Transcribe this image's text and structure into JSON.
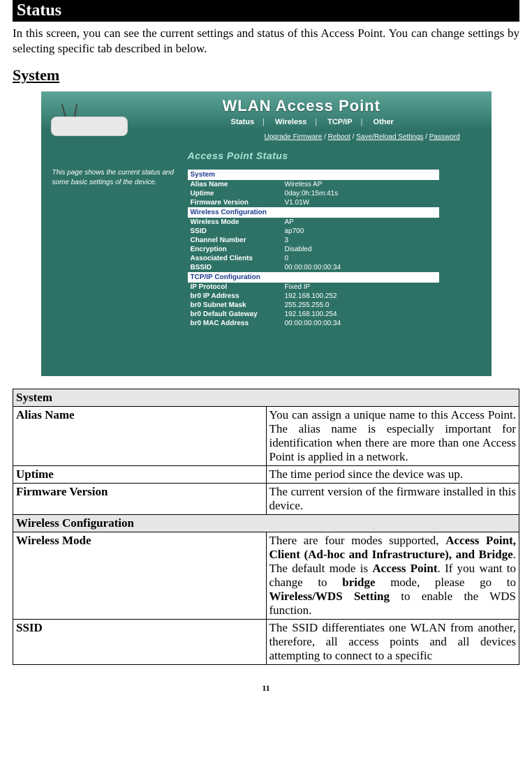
{
  "page": {
    "status_header": "Status",
    "intro": "In this screen, you can see the current settings and status of this Access Point. You can change settings by selecting specific tab described in below.",
    "section_title": "System",
    "page_number": "11"
  },
  "screenshot": {
    "title": "WLAN Access Point",
    "tabs": [
      "Status",
      "Wireless",
      "TCP/IP",
      "Other"
    ],
    "sublinks": [
      "Upgrade Firmware",
      "Reboot",
      "Save/Reload Settings",
      "Password"
    ],
    "side_text": "This page shows the current status and some basic settings of the device.",
    "panel_heading": "Access Point Status",
    "sections": [
      {
        "header": "System",
        "rows": [
          {
            "k": "Alias Name",
            "v": "Wireless AP"
          },
          {
            "k": "Uptime",
            "v": "0day:0h:15m:41s"
          },
          {
            "k": "Firmware Version",
            "v": "V1.01W"
          }
        ]
      },
      {
        "header": "Wireless Configuration",
        "rows": [
          {
            "k": "Wireless Mode",
            "v": "AP"
          },
          {
            "k": "SSID",
            "v": "ap700"
          },
          {
            "k": "Channel Number",
            "v": "3"
          },
          {
            "k": "Encryption",
            "v": "Disabled"
          },
          {
            "k": "Associated Clients",
            "v": "0"
          },
          {
            "k": "BSSID",
            "v": "00:00:00:00:00:34"
          }
        ]
      },
      {
        "header": "TCP/IP Configuration",
        "rows": [
          {
            "k": "IP Protocol",
            "v": "Fixed IP"
          },
          {
            "k": "br0 IP Address",
            "v": "192.168.100.252"
          },
          {
            "k": "br0 Subnet Mask",
            "v": "255.255.255.0"
          },
          {
            "k": "br0 Default Gateway",
            "v": "192.168.100.254"
          },
          {
            "k": "br0 MAC Address",
            "v": "00:00:00:00:00:34"
          }
        ]
      }
    ],
    "colors": {
      "background": "#2e7267",
      "top_gradient_from": "#5da498",
      "top_gradient_to": "#2e7267",
      "heading": "#a6e6d8",
      "section_bg": "#ffffff",
      "section_fg": "#1c3c8c",
      "text": "#ffffff"
    }
  },
  "desc_table": {
    "groups": [
      {
        "title": "System",
        "rows": [
          {
            "name": "Alias Name",
            "val": "You can assign a unique name to this Access Point. The alias name is especially important for identification when there are more than one Access Point is applied in a network."
          },
          {
            "name": "Uptime",
            "val": "The time period since the device was up."
          },
          {
            "name": "Firmware Version",
            "val": "The current version of the firmware installed in this device."
          }
        ]
      },
      {
        "title": "Wireless Configuration",
        "rows": [
          {
            "name": "Wireless Mode",
            "val_html": "There are four modes supported, <b>Access Point, Client (Ad-hoc and Infrastructure), and Bridge</b>. The default mode is <b>Access Point</b>. If you want to change to <b>bridge</b> mode, please go to <b>Wireless/WDS Setting</b> to enable the WDS function."
          },
          {
            "name": "SSID",
            "val": "The SSID differentiates one WLAN from another, therefore, all access points and all devices attempting to connect to a specific"
          }
        ]
      }
    ]
  }
}
